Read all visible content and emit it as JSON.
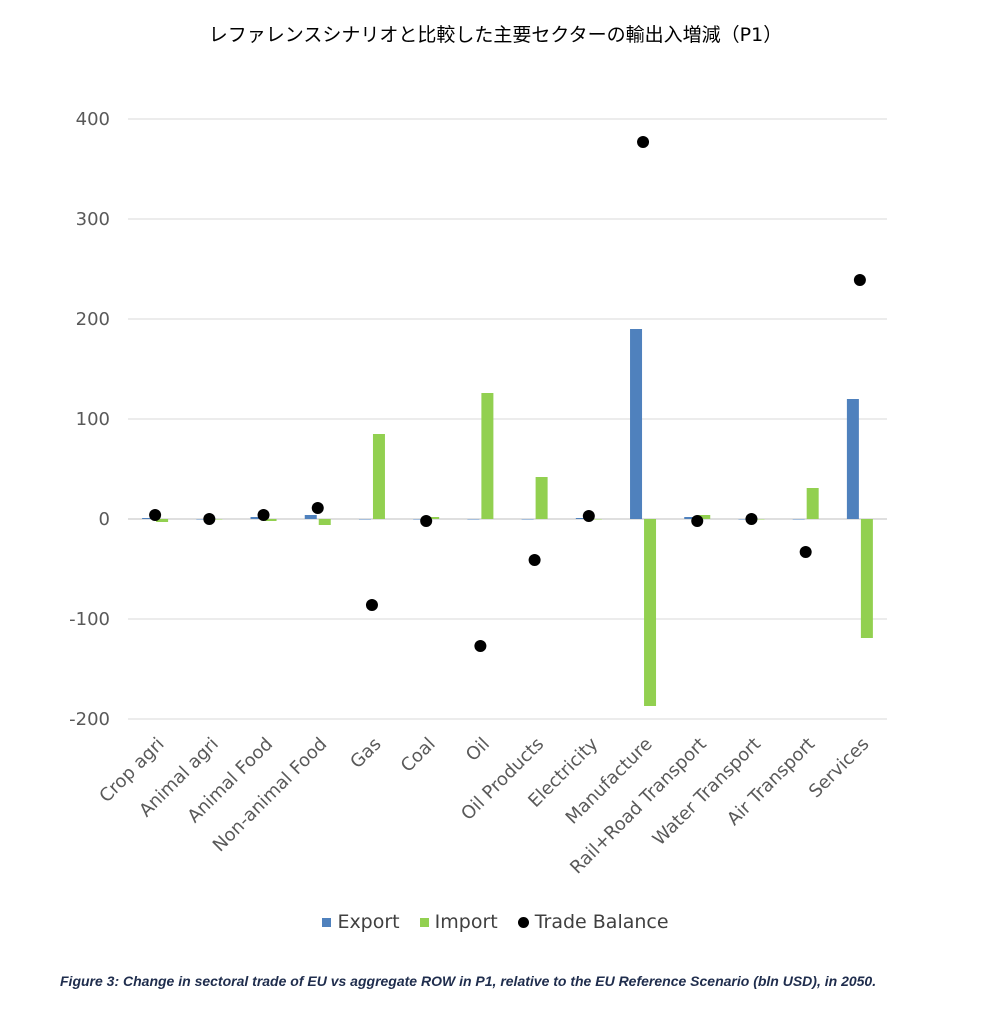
{
  "chart_data": {
    "type": "bar",
    "title": "レファレンスシナリオと比較した主要セクターの輸出入増減（P1）",
    "categories": [
      "Crop agri",
      "Animal agri",
      "Animal Food",
      "Non-animal Food",
      "Gas",
      "Coal",
      "Oil",
      "Oil Products",
      "Electricity",
      "Manufacture",
      "Rail+Road Transport",
      "Water Transport",
      "Air Transport",
      "Services"
    ],
    "series": [
      {
        "name": "Export",
        "kind": "bar",
        "color": "#4f81bd",
        "values": [
          1,
          0,
          2,
          4,
          0,
          0,
          0,
          0,
          1,
          190,
          2,
          0,
          0,
          120
        ]
      },
      {
        "name": "Import",
        "kind": "bar",
        "color": "#92d050",
        "values": [
          -3,
          0,
          -2,
          -6,
          85,
          2,
          126,
          42,
          0,
          -187,
          4,
          0,
          31,
          -119
        ]
      },
      {
        "name": "Trade Balance",
        "kind": "dot",
        "color": "#000000",
        "values": [
          4,
          0,
          4,
          11,
          -86,
          -2,
          -127,
          -41,
          3,
          377,
          -2,
          0,
          -33,
          239
        ]
      }
    ],
    "yticks": [
      "400",
      "300",
      "200",
      "100",
      "0",
      "-100",
      "-200"
    ],
    "ylim": [
      -200,
      400
    ],
    "grid": true,
    "legend_position": "bottom"
  },
  "caption": "Figure 3: Change in sectoral trade of EU vs aggregate ROW in P1, relative to the EU Reference Scenario (bln USD), in 2050."
}
